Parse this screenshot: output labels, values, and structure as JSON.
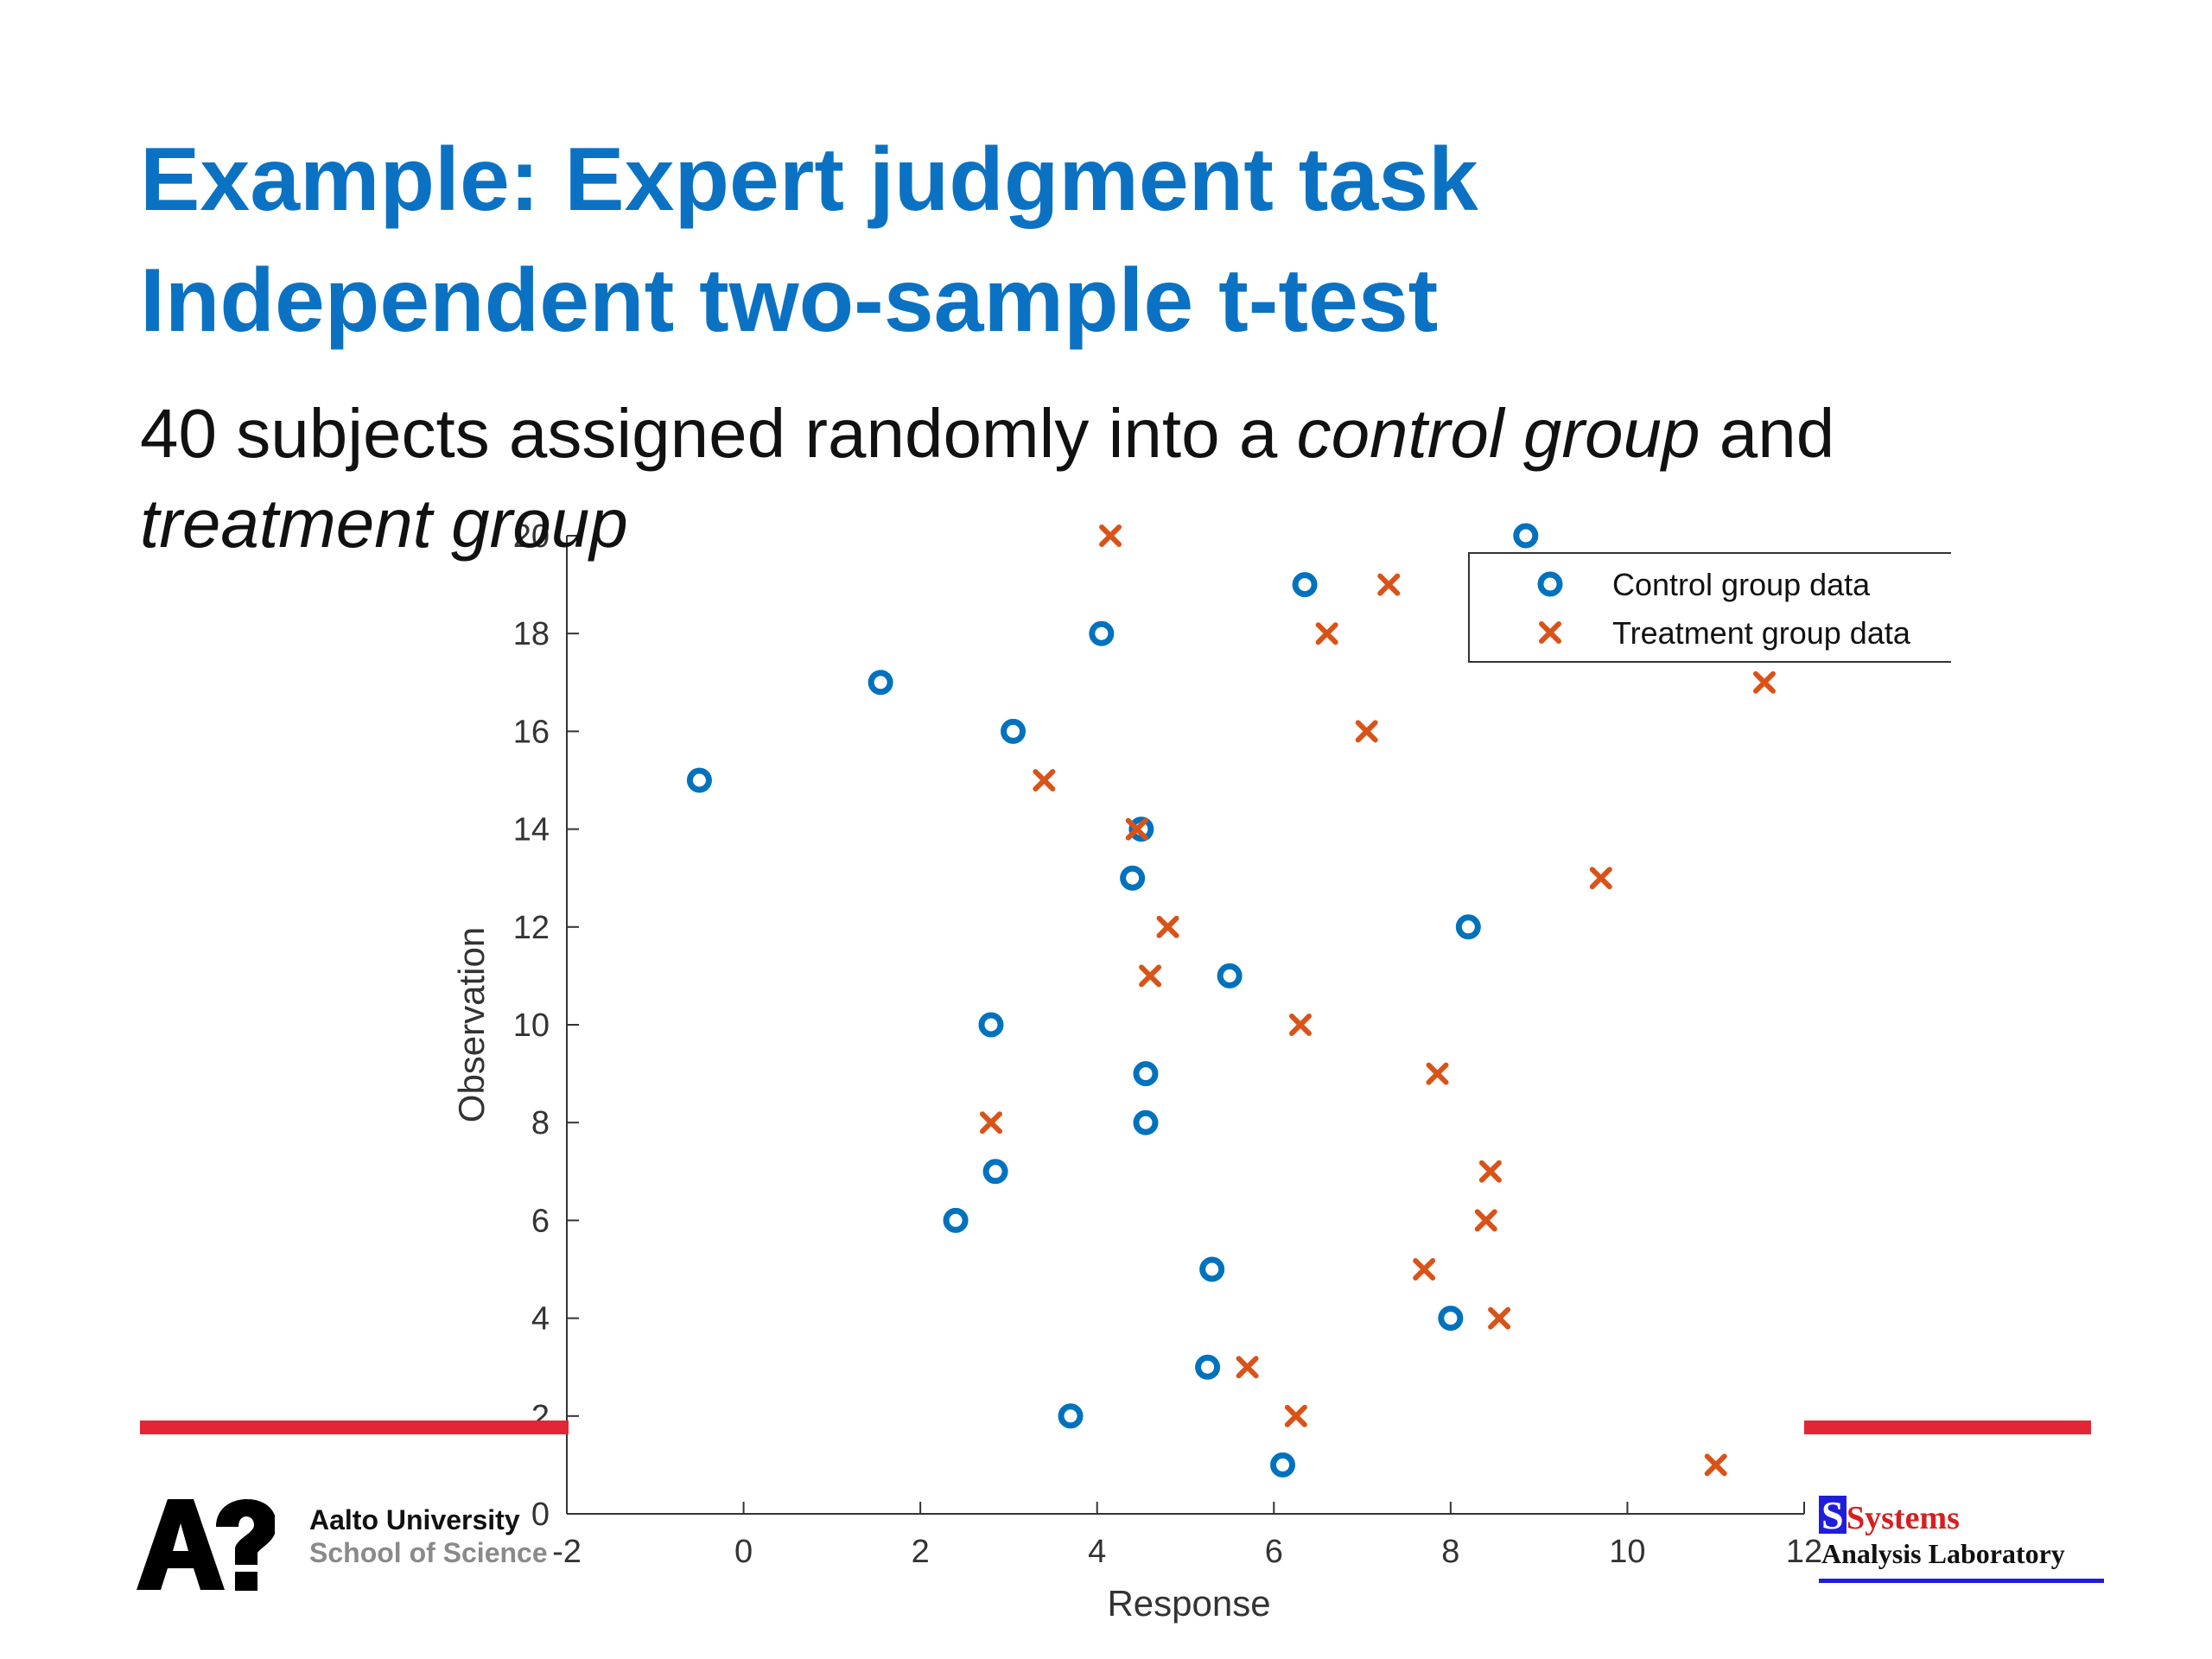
{
  "slide": {
    "title_line1": "Example: Expert judgment task",
    "title_line2": "Independent two-sample t-test",
    "subtitle": {
      "part1": "40 subjects assigned randomly into a ",
      "part2": "control group",
      "part3": " and",
      "part4": "treatment group"
    },
    "colors": {
      "title": "#0b72c3",
      "control": "#0072bd",
      "treatment": "#d95319",
      "accent_bar": "#e32636"
    }
  },
  "footer": {
    "university": "Aalto University",
    "school": "School of Science",
    "lab_word1": "Systems",
    "lab_word2": "Analysis Laboratory",
    "aalto_logo_icon": "aalto-a-question-mark-logo",
    "lab_logo_icon": "systems-analysis-lab-logo"
  },
  "chart_data": {
    "type": "scatter",
    "xlabel": "Response",
    "ylabel": "Observation",
    "xlim": [
      -2,
      12
    ],
    "ylim": [
      0,
      20
    ],
    "xticks": [
      -2,
      0,
      2,
      4,
      6,
      8,
      10,
      12
    ],
    "yticks": [
      0,
      2,
      4,
      6,
      8,
      10,
      12,
      14,
      16,
      18,
      20
    ],
    "grid": false,
    "legend_position": "top-right",
    "series": [
      {
        "name": "Control group data",
        "marker": "circle",
        "color": "#0072bd",
        "points": [
          [
            6.1,
            1
          ],
          [
            3.7,
            2
          ],
          [
            5.25,
            3
          ],
          [
            8.0,
            4
          ],
          [
            5.3,
            5
          ],
          [
            2.4,
            6
          ],
          [
            2.85,
            7
          ],
          [
            4.55,
            8
          ],
          [
            4.55,
            9
          ],
          [
            2.8,
            10
          ],
          [
            5.5,
            11
          ],
          [
            8.2,
            12
          ],
          [
            4.4,
            13
          ],
          [
            4.5,
            14
          ],
          [
            -0.5,
            15
          ],
          [
            3.05,
            16
          ],
          [
            1.55,
            17
          ],
          [
            4.05,
            18
          ],
          [
            6.35,
            19
          ],
          [
            8.85,
            20
          ]
        ]
      },
      {
        "name": "Treatment group data",
        "marker": "x",
        "color": "#d95319",
        "points": [
          [
            11.0,
            1
          ],
          [
            6.25,
            2
          ],
          [
            5.7,
            3
          ],
          [
            8.55,
            4
          ],
          [
            7.7,
            5
          ],
          [
            8.4,
            6
          ],
          [
            8.45,
            7
          ],
          [
            2.8,
            8
          ],
          [
            7.85,
            9
          ],
          [
            6.3,
            10
          ],
          [
            4.6,
            11
          ],
          [
            4.8,
            12
          ],
          [
            9.7,
            13
          ],
          [
            4.45,
            14
          ],
          [
            3.4,
            15
          ],
          [
            7.05,
            16
          ],
          [
            11.55,
            17
          ],
          [
            6.6,
            18
          ],
          [
            7.3,
            19
          ],
          [
            4.15,
            20
          ]
        ]
      }
    ]
  }
}
